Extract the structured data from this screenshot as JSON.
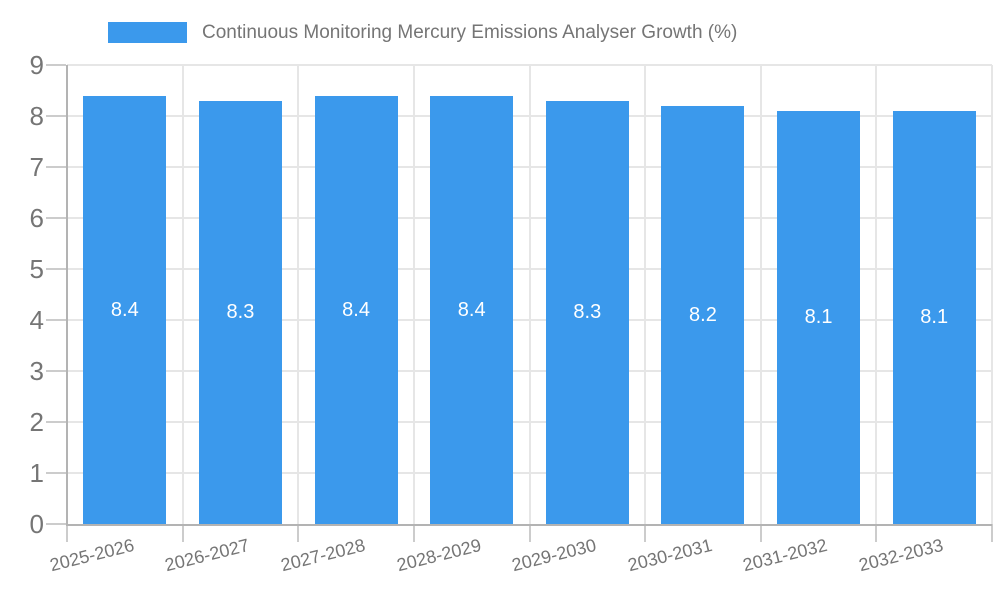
{
  "chart_data": {
    "type": "bar",
    "title": "Continuous Monitoring Mercury Emissions Analyser Growth (%)",
    "legend": [
      "Continuous Monitoring Mercury Emissions Analyser Growth (%)"
    ],
    "legend_position": "top-left",
    "categories": [
      "2025-2026",
      "2026-2027",
      "2027-2028",
      "2028-2029",
      "2029-2030",
      "2030-2031",
      "2031-2032",
      "2032-2033"
    ],
    "values": [
      8.4,
      8.3,
      8.4,
      8.4,
      8.3,
      8.2,
      8.1,
      8.1
    ],
    "bar_labels": [
      "8.4",
      "8.3",
      "8.4",
      "8.4",
      "8.3",
      "8.2",
      "8.1",
      "8.1"
    ],
    "xlabel": "",
    "ylabel": "",
    "ylim": [
      0,
      9
    ],
    "yticks": [
      0,
      1,
      2,
      3,
      4,
      5,
      6,
      7,
      8,
      9
    ],
    "grid": true,
    "x_label_rotation_deg": -14,
    "colors": {
      "bar": "#3b99ec",
      "bar_label": "#ffffff",
      "grid": "#e6e6e6",
      "axis": "#b3b3b3",
      "tick": "#cccccc",
      "text": "#757575",
      "background": "#ffffff"
    }
  }
}
